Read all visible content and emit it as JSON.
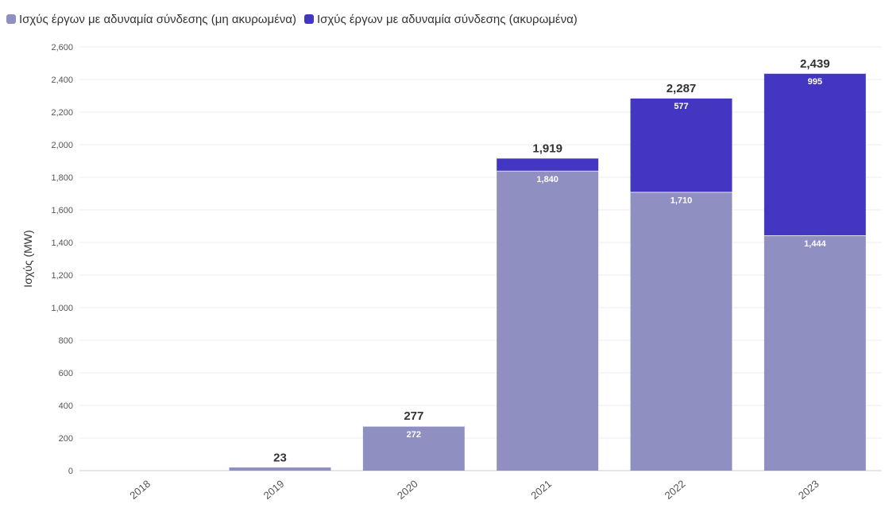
{
  "legend": {
    "items": [
      {
        "label": "Ισχύς έργων με αδυναμία σύνδεσης (μη ακυρωμένα)",
        "color": "#8f8fc2"
      },
      {
        "label": "Ισχύς έργων με αδυναμία σύνδεσης (ακυρωμένα)",
        "color": "#4337c2"
      }
    ]
  },
  "chart_data": {
    "type": "bar",
    "stacked": true,
    "categories": [
      "2018",
      "2019",
      "2020",
      "2021",
      "2022",
      "2023"
    ],
    "series": [
      {
        "name": "Ισχύς έργων με αδυναμία σύνδεσης (μη ακυρωμένα)",
        "values": [
          0,
          23,
          272,
          1840,
          1710,
          1444
        ],
        "color": "#8f8fc2"
      },
      {
        "name": "Ισχύς έργων με αδυναμία σύνδεσης (ακυρωμένα)",
        "values": [
          0,
          0,
          5,
          79,
          577,
          995
        ],
        "color": "#4337c2"
      }
    ],
    "totals": [
      null,
      "23",
      "277",
      "1,919",
      "2,287",
      "2,439"
    ],
    "segment_labels": [
      [
        null,
        null,
        "272",
        "1,840",
        "1,710",
        "1,444"
      ],
      [
        null,
        null,
        null,
        null,
        "577",
        "995"
      ]
    ],
    "ylabel": "Ισχύς (MW)",
    "xlabel": "",
    "ylim": [
      0,
      2600
    ],
    "yticks": [
      "0",
      "200",
      "400",
      "600",
      "800",
      "1,000",
      "1,200",
      "1,400",
      "1,600",
      "1,800",
      "2,000",
      "2,200",
      "2,400",
      "2,600"
    ],
    "grid": true,
    "legend_position": "top-left"
  }
}
